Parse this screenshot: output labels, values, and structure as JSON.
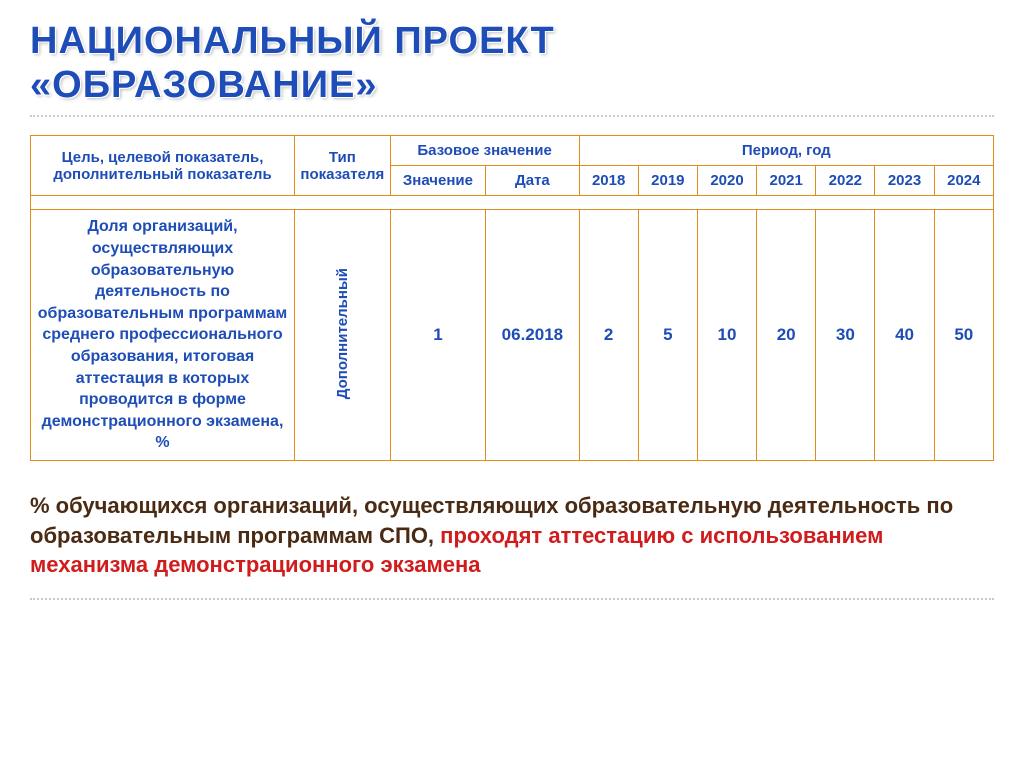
{
  "title": {
    "line1": "НАЦИОНАЛЬНЫЙ ПРОЕКТ",
    "line2": "«ОБРАЗОВАНИЕ»",
    "color": "#1e4db7"
  },
  "table": {
    "border_color": "#e08b1a",
    "header_text_color": "#1e4db7",
    "columns": {
      "target": "Цель, целевой показатель, дополнительный показатель",
      "type": "Тип показателя",
      "base_group": "Базовое значение",
      "base_value": "Значение",
      "base_date": "Дата",
      "period_group": "Период, год",
      "years": [
        "2018",
        "2019",
        "2020",
        "2021",
        "2022",
        "2023",
        "2024"
      ]
    },
    "row": {
      "indicator": "Доля организаций, осуществляющих образовательную деятельность по образовательным программам среднего профессионального образования, итоговая аттестация в которых проводится в форме демонстрационного экзамена, %",
      "type": "Дополнительный",
      "base_value": "1",
      "base_date": "06.2018",
      "values": [
        "2",
        "5",
        "10",
        "20",
        "30",
        "40",
        "50"
      ]
    }
  },
  "footer": {
    "part1": "% обучающихся организаций, осуществляющих образовательную деятельность по образовательным программам СПО, ",
    "part2": "проходят аттестацию с использованием механизма демонстрационного экзамена",
    "color_main": "#4a2a12",
    "color_highlight": "#d01c1c"
  }
}
